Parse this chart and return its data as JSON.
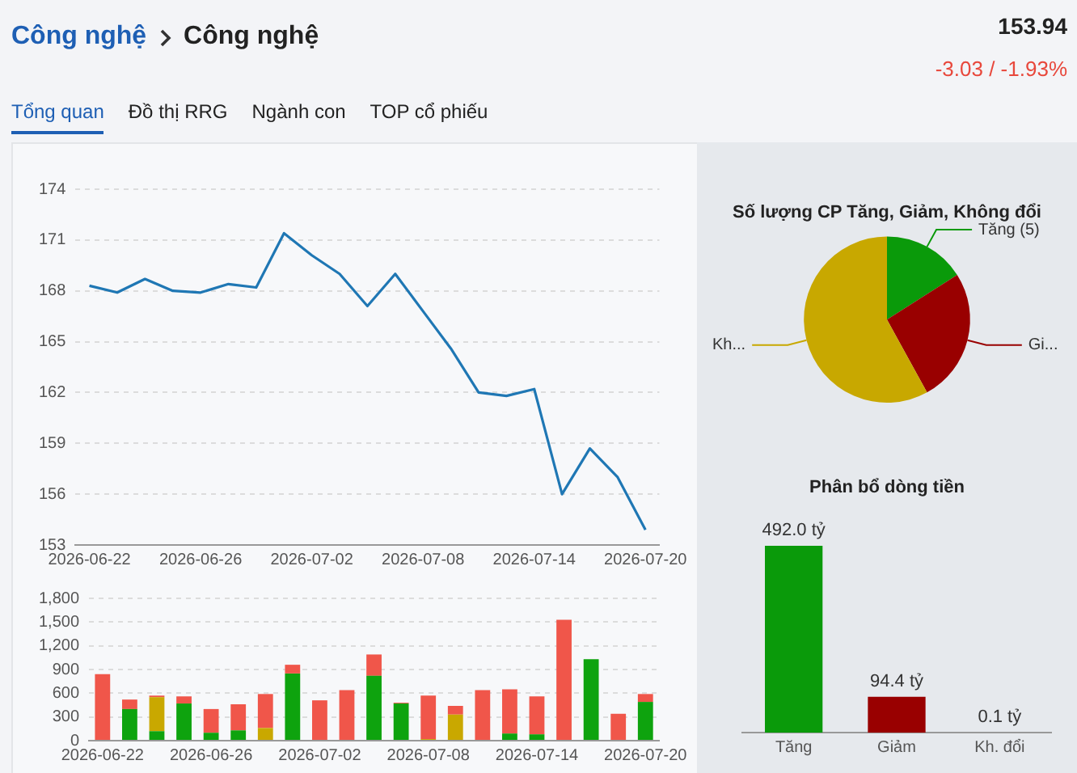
{
  "chart_data": [
    {
      "type": "line",
      "annotations": [
        "Công nghệ",
        "Công nghệ",
        "153.94",
        "-3.03 / -1.93%",
        "Tổng quan",
        "Đồ thị RRG",
        "Ngành con",
        "TOP cổ phiếu"
      ],
      "categories": [
        "2026-06-22",
        null,
        null,
        null,
        "2026-06-26",
        null,
        null,
        null,
        "2026-07-02",
        null,
        null,
        null,
        "2026-07-08",
        null,
        null,
        null,
        "2026-07-14",
        null,
        null,
        null,
        "2026-07-20"
      ],
      "values": [
        168.3,
        167.9,
        168.7,
        168.0,
        167.9,
        168.4,
        168.2,
        171.4,
        170.1,
        169.0,
        167.1,
        169.0,
        166.8,
        164.6,
        162.0,
        161.8,
        162.2,
        156.0,
        158.7,
        157.0,
        153.9
      ],
      "color": "#1f77b4",
      "ylim": [
        153,
        174
      ],
      "yticks": [
        153,
        156,
        159,
        162,
        165,
        168,
        171,
        174
      ],
      "grid": "y",
      "marker": "none",
      "line_style": "solid"
    },
    {
      "type": "bar",
      "stacked": true,
      "categories": [
        "2026-06-22",
        null,
        null,
        null,
        "2026-06-26",
        null,
        null,
        null,
        "2026-07-02",
        null,
        null,
        null,
        "2026-07-08",
        null,
        null,
        null,
        "2026-07-14",
        null,
        null,
        null,
        "2026-07-20"
      ],
      "series": [
        {
          "color": "#0ea30e",
          "values": [
            0,
            400,
            120,
            470,
            100,
            130,
            0,
            850,
            0,
            0,
            820,
            470,
            0,
            0,
            0,
            90,
            80,
            0,
            1030,
            0,
            490
          ]
        },
        {
          "color": "#c9a800",
          "values": [
            0,
            0,
            430,
            0,
            0,
            0,
            160,
            0,
            0,
            0,
            0,
            0,
            20,
            330,
            0,
            0,
            0,
            0,
            0,
            0,
            0
          ]
        },
        {
          "color": "#f0564a",
          "values": [
            840,
            120,
            20,
            90,
            300,
            330,
            430,
            110,
            510,
            640,
            270,
            10,
            550,
            110,
            640,
            560,
            480,
            1530,
            0,
            340,
            100
          ]
        }
      ],
      "ylim": [
        0,
        1800
      ],
      "yticks": [
        0,
        300,
        600,
        900,
        {
          "value": 1200,
          "label": "1,200"
        },
        {
          "value": 1500,
          "label": "1,500"
        },
        {
          "value": 1800,
          "label": "1,800"
        }
      ],
      "grid": "y"
    },
    {
      "type": "pie",
      "title": "Số lượng CP Tăng, Giảm, Không đổi",
      "categories": [
        "Tăng (5)",
        "Gi...",
        "Kh..."
      ],
      "values": [
        16,
        26,
        58
      ],
      "colors": [
        "#0a9a0a",
        "#990000",
        "#c8a800"
      ]
    },
    {
      "type": "bar",
      "title": "Phân bổ dòng tiền",
      "categories": [
        "Tăng",
        "Giảm",
        "Kh. đổi"
      ],
      "values": [
        492.0,
        94.4,
        0.1
      ],
      "colors": [
        "#0a9a0a",
        "#990000",
        "#c8a800"
      ],
      "value_labels": [
        "492.0 tỷ",
        "94.4 tỷ",
        "0.1 tỷ"
      ]
    }
  ]
}
